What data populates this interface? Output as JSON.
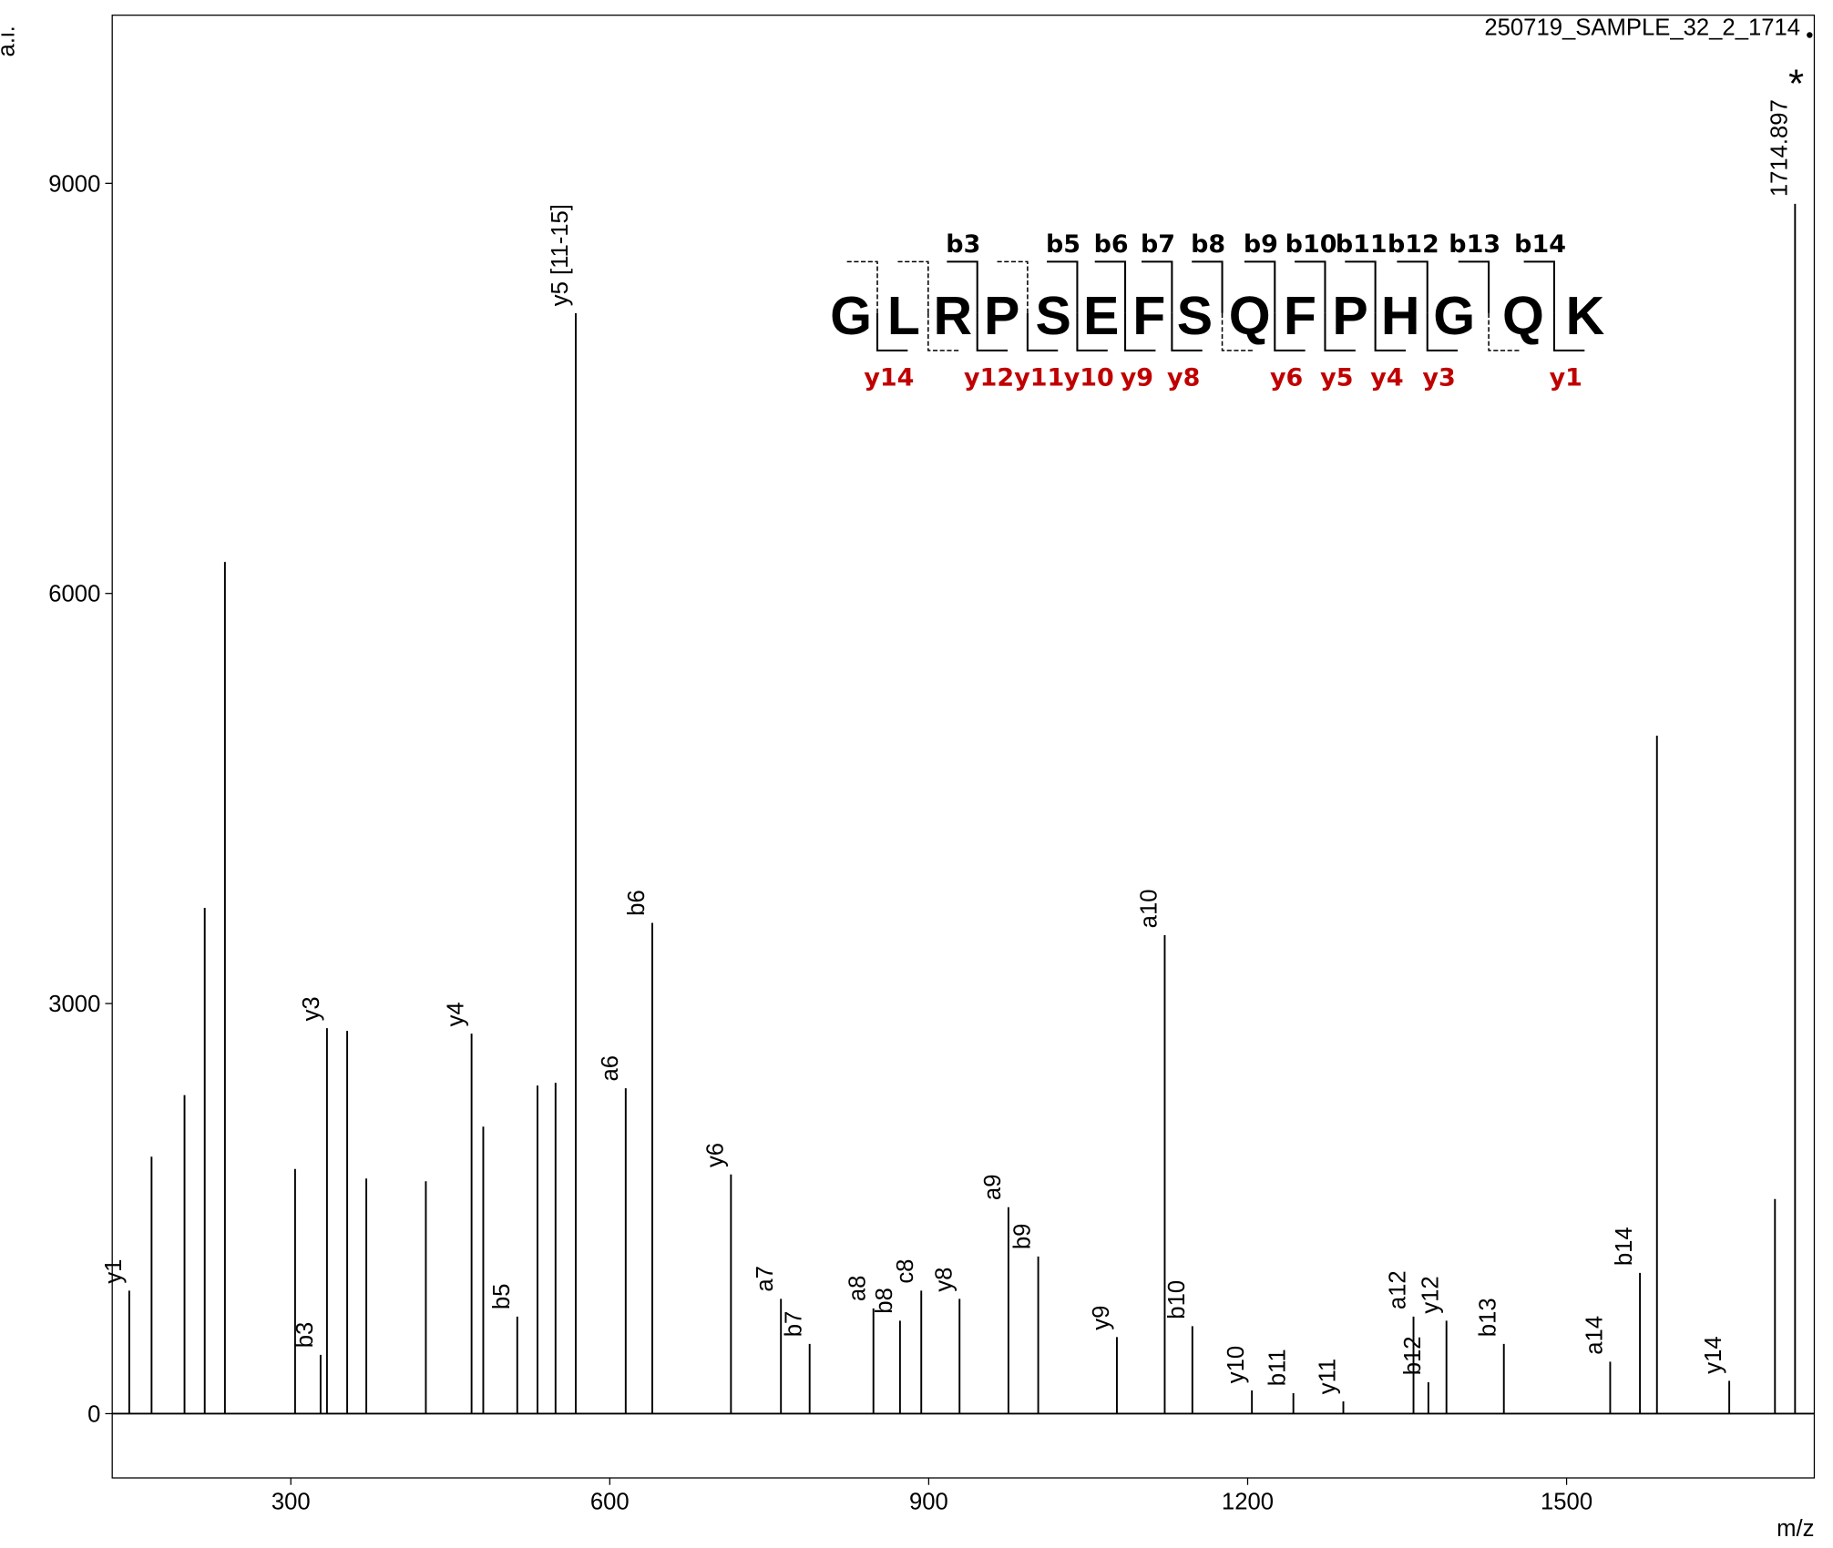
{
  "chart_data": {
    "type": "spectrum",
    "title": "250719_SAMPLE_32_2_1714",
    "y_label": "a.i.",
    "x_label": "m/z",
    "xlim": [
      132,
      1733
    ],
    "ylim": [
      -470,
      10230
    ],
    "xticks": [
      300,
      600,
      900,
      1200,
      1500
    ],
    "yticks": [
      0,
      3000,
      6000,
      9000
    ],
    "color": "#000000",
    "x": [
      148,
      169,
      200,
      219,
      238,
      304,
      328,
      334,
      353,
      371,
      427,
      470,
      481,
      513,
      532,
      549,
      568,
      615,
      640,
      714,
      761,
      788,
      848,
      873,
      893,
      929,
      975,
      1003,
      1077,
      1122,
      1148,
      1204,
      1243,
      1290,
      1356,
      1370,
      1387,
      1441,
      1541,
      1569,
      1585,
      1653,
      1696,
      1714.897
    ],
    "values": [
      900,
      1880,
      2330,
      3700,
      6230,
      1790,
      430,
      2820,
      2800,
      1720,
      1700,
      2780,
      2100,
      710,
      2400,
      2420,
      8050,
      2380,
      3590,
      1750,
      840,
      510,
      770,
      680,
      900,
      840,
      1510,
      1150,
      560,
      3500,
      640,
      170,
      150,
      90,
      710,
      230,
      680,
      510,
      380,
      1030,
      4960,
      240,
      1570,
      8850
    ],
    "labels": [
      "y1",
      null,
      null,
      null,
      null,
      null,
      "b3",
      "y3",
      null,
      null,
      null,
      "y4",
      null,
      "b5",
      null,
      null,
      "y5 [11-15]",
      "a6",
      "b6",
      "y6",
      "a7",
      "b7",
      "a8",
      "b8",
      "c8",
      "y8",
      "a9",
      "b9",
      "y9",
      "a10",
      "b10",
      "y10",
      "b11",
      "y11",
      "a12",
      "b12",
      "y12",
      "b13",
      "a14",
      "b14",
      null,
      "y14",
      null,
      "1714.897"
    ],
    "annotation": "*",
    "sequence": {
      "residues": [
        "G",
        "L",
        "R",
        "P",
        "S",
        "E",
        "F",
        "S",
        "Q",
        "F",
        "P",
        "H",
        "G",
        "Q",
        "K"
      ],
      "b_ions": [
        null,
        null,
        "b3",
        null,
        "b5",
        "b6",
        "b7",
        "b8",
        "b9",
        "b10",
        "b11",
        "b12",
        "b13",
        "b14"
      ],
      "y_ions": [
        "y14",
        null,
        "y12",
        "y11",
        "y10",
        "y9",
        "y8",
        null,
        "y6",
        "y5",
        "y4",
        "y3",
        null,
        "y1"
      ],
      "y_color": "#c00000"
    }
  }
}
